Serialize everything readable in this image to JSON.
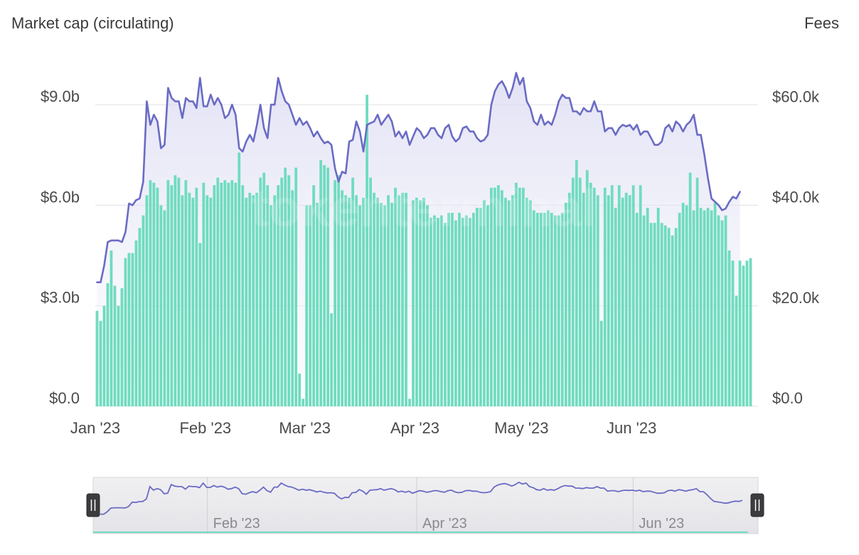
{
  "chart_data": {
    "type": "bar+line",
    "left_axis_title": "Market cap (circulating)",
    "right_axis_title": "Fees",
    "left_axis": {
      "ticks": [
        "$0.0",
        "$3.0b",
        "$6.0b",
        "$9.0b"
      ],
      "tick_values": [
        0,
        3,
        6,
        9
      ],
      "unit": "billions USD",
      "ylim": [
        0,
        10
      ]
    },
    "right_axis": {
      "ticks": [
        "$0.0",
        "$20.0k",
        "$40.0k",
        "$60.0k"
      ],
      "tick_values": [
        0,
        20,
        40,
        60
      ],
      "unit": "thousands USD",
      "ylim": [
        0,
        66.7
      ]
    },
    "x_axis": {
      "ticks": [
        "Jan '23",
        "Feb '23",
        "Mar '23",
        "Apr '23",
        "May '23",
        "Jun '23"
      ],
      "tick_days": [
        1,
        32,
        60,
        91,
        121,
        152
      ],
      "range": [
        "2023-01-01",
        "2023-06-21"
      ]
    },
    "grid": "horizontal",
    "watermark": "tokenterminal",
    "series": [
      {
        "name": "Market cap (circulating)",
        "kind": "line",
        "axis": "left",
        "color": "#6a6bc4",
        "start": "2023-01-01",
        "values": [
          3.7,
          3.7,
          4.2,
          4.9,
          4.95,
          4.95,
          4.95,
          4.9,
          5.2,
          6.05,
          6.0,
          6.15,
          6.2,
          6.7,
          9.1,
          8.4,
          8.7,
          8.5,
          7.7,
          7.8,
          9.5,
          9.2,
          9.1,
          9.1,
          8.6,
          9.2,
          9.1,
          9.1,
          8.9,
          9.8,
          8.95,
          8.95,
          9.3,
          9.0,
          9.2,
          9.0,
          8.6,
          8.7,
          9.0,
          8.7,
          7.7,
          7.6,
          7.9,
          8.1,
          7.9,
          8.4,
          9.0,
          8.3,
          8.0,
          9.0,
          9.0,
          9.8,
          9.4,
          9.1,
          9.0,
          8.7,
          8.4,
          8.6,
          8.4,
          8.5,
          8.3,
          8.05,
          8.2,
          8.0,
          7.85,
          7.9,
          7.8,
          7.1,
          6.7,
          7.0,
          6.95,
          7.9,
          7.95,
          8.5,
          8.2,
          7.6,
          8.4,
          8.45,
          8.5,
          8.7,
          8.4,
          8.55,
          8.7,
          8.5,
          8.05,
          8.2,
          8.0,
          8.2,
          7.8,
          8.05,
          8.3,
          8.2,
          8.0,
          8.1,
          8.3,
          8.3,
          8.1,
          8.0,
          8.3,
          8.4,
          8.05,
          7.9,
          8.0,
          8.3,
          8.35,
          8.2,
          8.2,
          8.0,
          7.9,
          7.95,
          8.1,
          9.0,
          9.4,
          9.6,
          9.7,
          9.5,
          9.2,
          9.5,
          9.95,
          9.6,
          9.8,
          9.1,
          8.9,
          8.5,
          8.4,
          8.7,
          8.4,
          8.5,
          8.4,
          8.7,
          9.1,
          9.3,
          9.2,
          9.2,
          8.8,
          8.8,
          8.7,
          8.9,
          8.8,
          8.8,
          9.1,
          8.8,
          8.8,
          8.2,
          8.3,
          8.3,
          8.1,
          8.3,
          8.4,
          8.35,
          8.4,
          8.25,
          8.4,
          8.1,
          8.2,
          8.2,
          8.0,
          7.8,
          7.8,
          7.9,
          8.3,
          8.4,
          8.2,
          8.5,
          8.4,
          8.2,
          8.4,
          8.5,
          8.7,
          8.1,
          8.1,
          7.5,
          6.8,
          6.2,
          6.1,
          6.0,
          5.85,
          5.9,
          6.1,
          6.25,
          6.2,
          6.4
        ]
      },
      {
        "name": "Fees",
        "kind": "bar",
        "axis": "right",
        "color": "#6fdcbf",
        "start": "2023-01-01",
        "values": [
          19,
          17,
          20,
          24.5,
          31,
          24,
          20,
          23.5,
          29.5,
          30.5,
          30.5,
          33,
          35.5,
          38,
          42,
          45,
          44.5,
          43.5,
          40,
          39,
          45,
          44,
          46,
          45.5,
          42,
          45,
          42.5,
          41.5,
          43.5,
          32.5,
          44.5,
          42,
          41.5,
          44,
          45.5,
          44.5,
          45,
          44.5,
          45,
          44.5,
          50.5,
          44,
          41.5,
          42.5,
          42,
          42.5,
          45.5,
          46.5,
          44,
          40,
          42,
          44,
          45.5,
          47.5,
          46,
          43,
          47.5,
          6.5,
          1.5,
          40,
          40,
          44,
          40.5,
          49,
          48,
          47.5,
          18.5,
          45,
          46,
          43,
          42,
          41.5,
          45.5,
          42,
          40,
          41.5,
          62,
          45.5,
          42.5,
          41.5,
          40.5,
          40,
          42,
          40.5,
          43.5,
          42,
          42.5,
          42.5,
          1.5,
          41,
          41.5,
          41,
          41.5,
          40,
          37.5,
          38,
          37.5,
          38,
          36.5,
          38.5,
          38.5,
          37,
          38.5,
          37.5,
          38,
          37.5,
          38.5,
          39.5,
          39.5,
          41,
          40,
          43.5,
          43.5,
          44,
          43,
          41.5,
          41,
          42,
          44.5,
          43.5,
          43.5,
          41.5,
          41,
          39,
          38.5,
          38.5,
          38.5,
          39,
          38.5,
          38,
          38,
          38.5,
          40.5,
          42.5,
          45.5,
          49,
          45.5,
          42.5,
          47,
          44.5,
          43.5,
          42,
          17,
          43.5,
          42,
          44,
          39.5,
          44,
          41.5,
          42.5,
          42,
          44,
          38.5,
          44,
          38,
          39.5,
          36.5,
          36.5,
          39.5,
          36.5,
          36,
          35.5,
          34,
          35.5,
          38.5,
          40.5,
          40,
          46.5,
          39,
          45.5,
          39.5,
          39,
          39.5,
          39,
          40.5,
          38,
          37,
          38,
          31,
          29,
          22,
          29,
          28,
          29,
          29.5
        ]
      }
    ]
  },
  "range_selector": {
    "labels": [
      "Feb '23",
      "Apr '23",
      "Jun '23"
    ],
    "label_days": [
      32,
      91,
      152
    ],
    "line_color": "#6a6bc4"
  }
}
